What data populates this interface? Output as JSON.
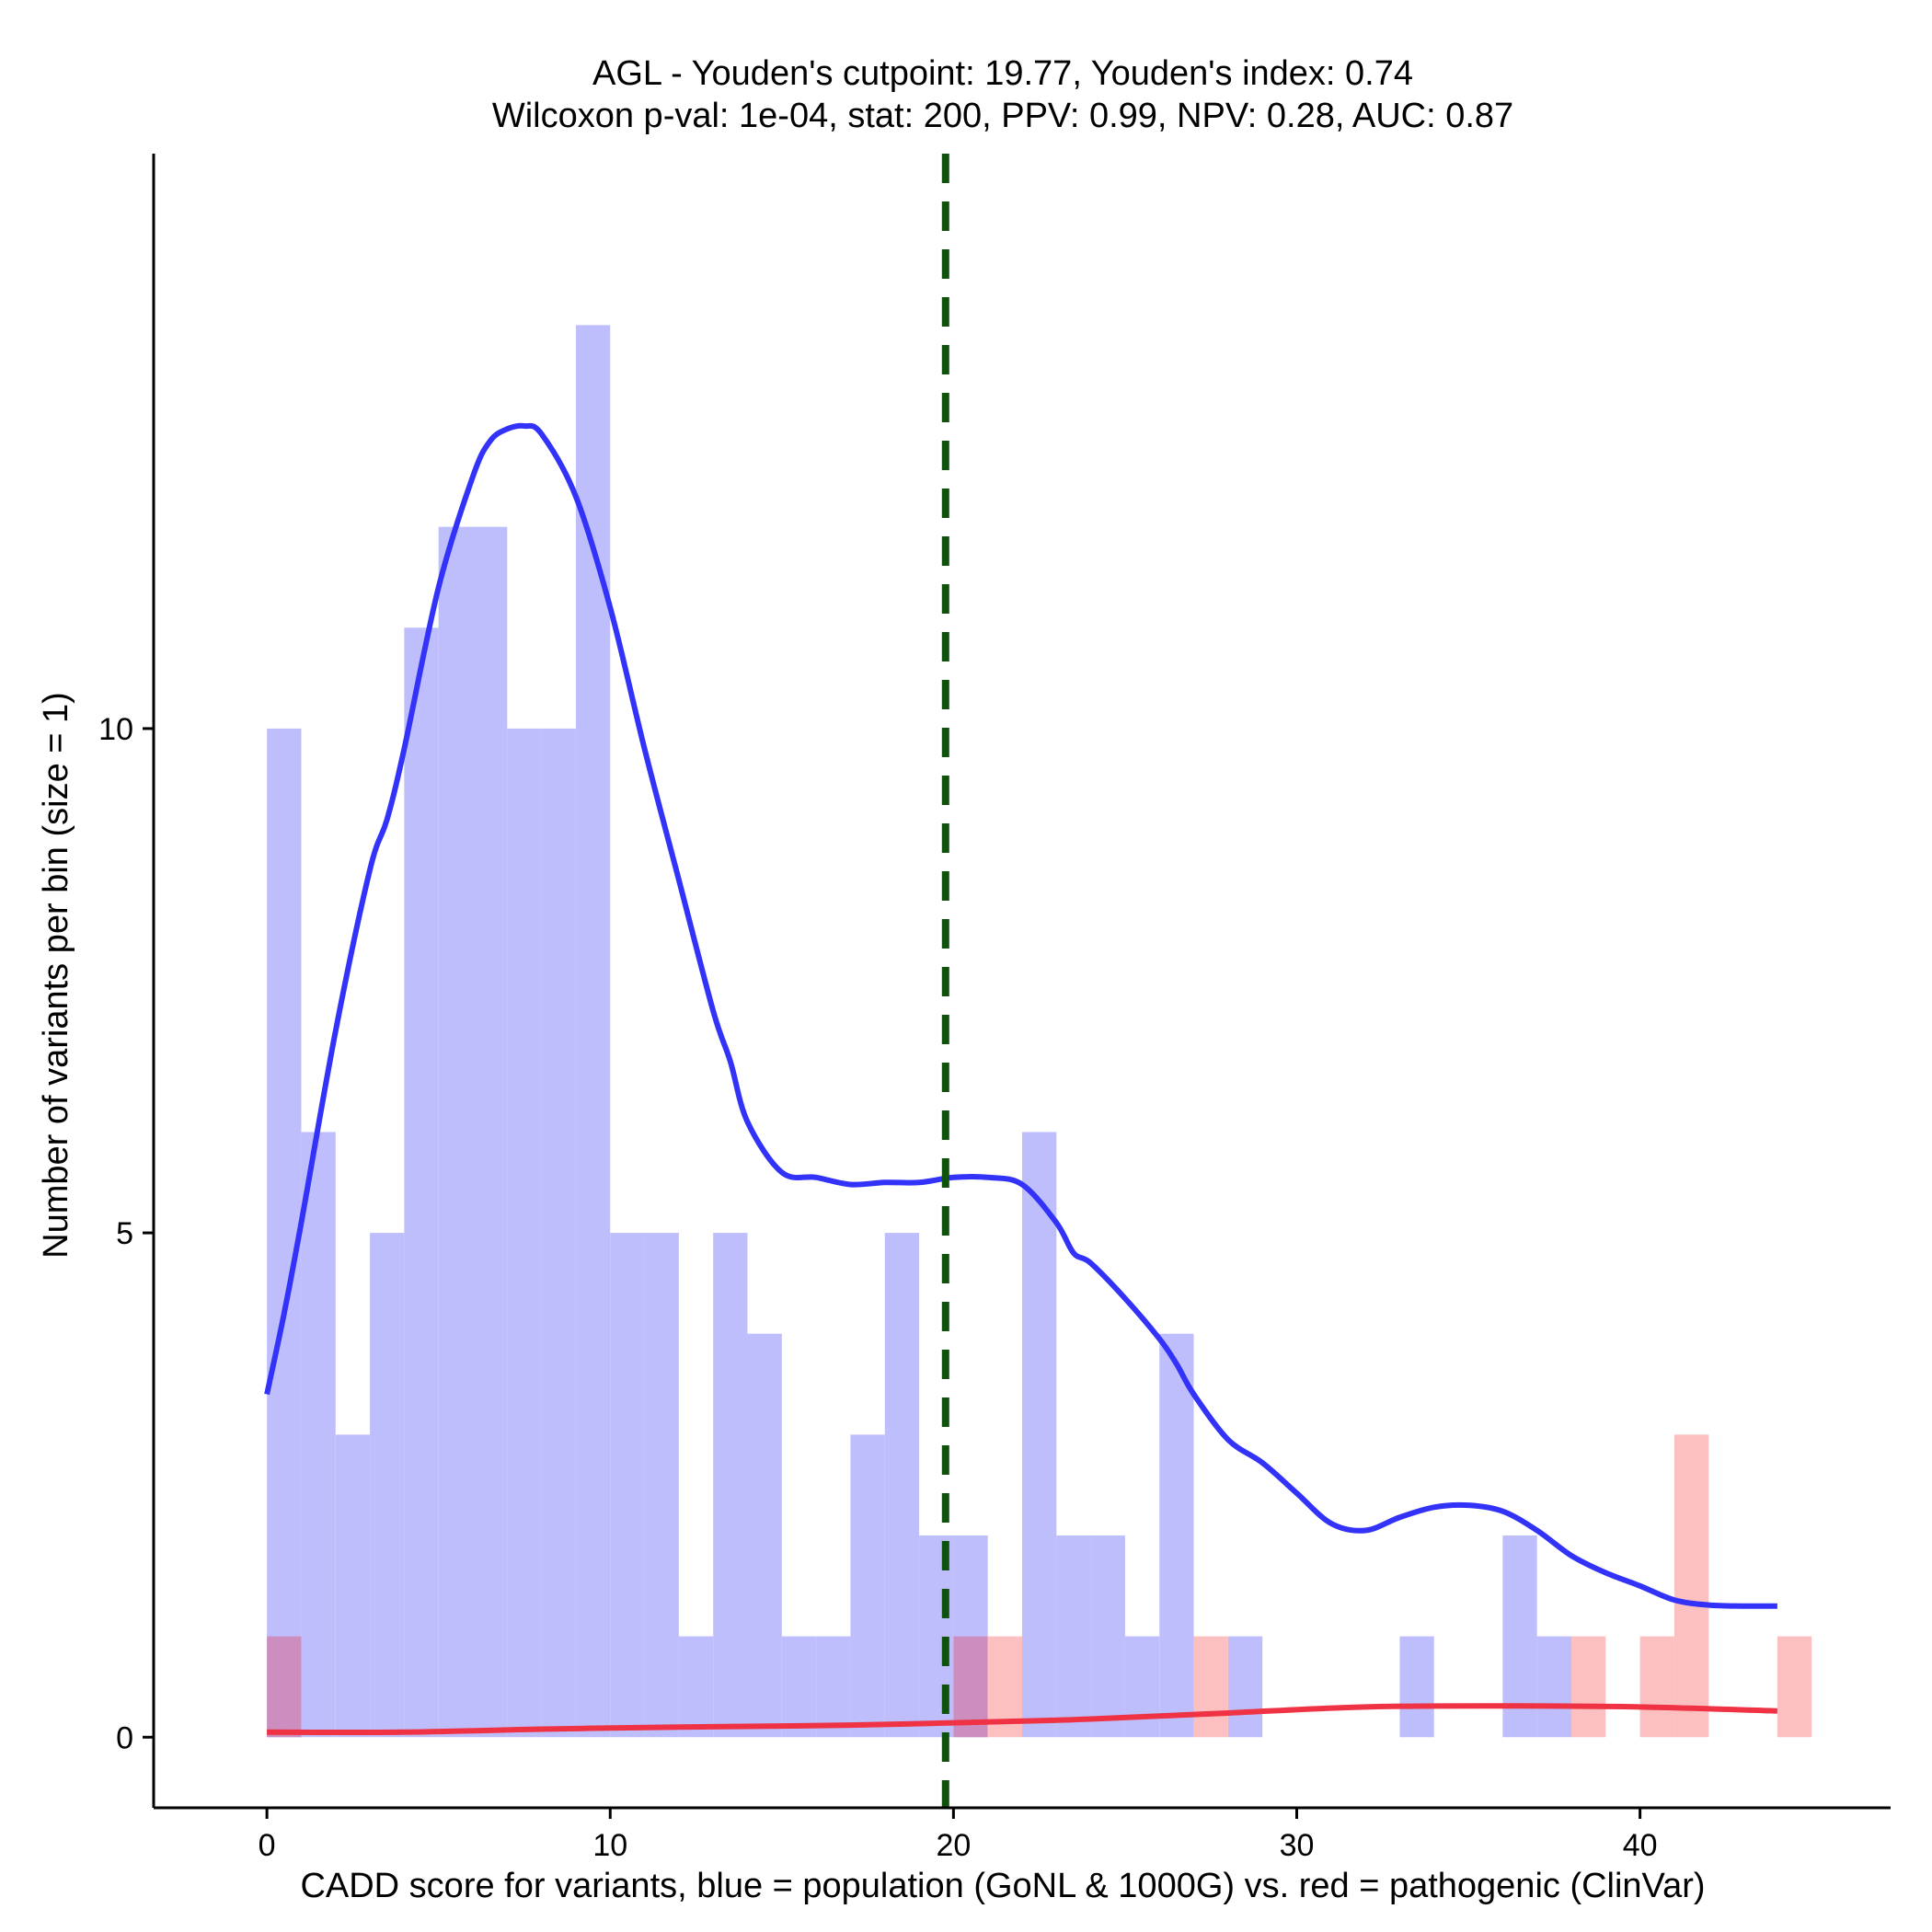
{
  "chart_data": {
    "type": "histogram",
    "title": "AGL - Youden's cutpoint: 19.77, Youden's index: 0.74",
    "subtitle": "Wilcoxon p-val: 1e-04, stat: 200, PPV: 0.99, NPV: 0.28, AUC: 0.87",
    "xlabel": "CADD score for variants, blue = population (GoNL & 1000G) vs. red = pathogenic (ClinVar)",
    "ylabel": "Number of variants per bin (size = 1)",
    "xlim": [
      -3.3,
      47.3
    ],
    "ylim": [
      -0.7,
      15.7
    ],
    "x_ticks": [
      0,
      10,
      20,
      30,
      40
    ],
    "y_ticks": [
      0,
      5,
      10
    ],
    "bin_width": 1,
    "cutpoint": 19.77,
    "colors": {
      "population_fill": "#bebefd",
      "pathogenic_fill": "#fcc0c1",
      "overlap_fill": "#cc8ebf",
      "population_line": "#3232f8",
      "pathogenic_line": "#ef3344",
      "cutpoint_line": "#0e520e"
    },
    "series": [
      {
        "name": "population (GoNL & 1000G)",
        "bin_starts": [
          0,
          1,
          2,
          3,
          4,
          5,
          6,
          7,
          8,
          9,
          10,
          11,
          12,
          13,
          14,
          15,
          16,
          17,
          18,
          19,
          20,
          21,
          22,
          23,
          24,
          25,
          26,
          27,
          28,
          29,
          30,
          31,
          32,
          33,
          34,
          35,
          36,
          37,
          38,
          39,
          40,
          41,
          42,
          43,
          44
        ],
        "counts": [
          10,
          6,
          3,
          5,
          11,
          12,
          12,
          10,
          10,
          14,
          5,
          5,
          1,
          5,
          4,
          1,
          1,
          3,
          5,
          2,
          2,
          0,
          6,
          2,
          2,
          1,
          4,
          0,
          1,
          0,
          0,
          0,
          0,
          1,
          0,
          0,
          2,
          1,
          0,
          0,
          0,
          0,
          0,
          0,
          0
        ]
      },
      {
        "name": "pathogenic (ClinVar)",
        "bin_starts": [
          0,
          1,
          2,
          3,
          4,
          5,
          6,
          7,
          8,
          9,
          10,
          11,
          12,
          13,
          14,
          15,
          16,
          17,
          18,
          19,
          20,
          21,
          22,
          23,
          24,
          25,
          26,
          27,
          28,
          29,
          30,
          31,
          32,
          33,
          34,
          35,
          36,
          37,
          38,
          39,
          40,
          41,
          42,
          43,
          44
        ],
        "counts": [
          1,
          0,
          0,
          0,
          0,
          0,
          0,
          0,
          0,
          0,
          0,
          0,
          0,
          0,
          0,
          0,
          0,
          0,
          0,
          0,
          1,
          1,
          0,
          0,
          0,
          0,
          0,
          1,
          0,
          0,
          0,
          0,
          0,
          0,
          0,
          0,
          0,
          0,
          1,
          0,
          1,
          3,
          0,
          0,
          1
        ]
      }
    ],
    "density_lines": [
      {
        "name": "population density",
        "x": [
          0,
          0.5,
          1,
          2,
          3,
          3.5,
          4,
          5,
          6,
          6.5,
          7,
          7.5,
          8,
          9,
          10,
          11,
          12,
          13,
          13.5,
          14,
          15,
          16,
          17,
          18,
          19,
          20,
          21,
          22,
          23,
          23.5,
          24,
          25,
          26,
          26.5,
          27,
          28,
          29,
          30,
          31,
          32,
          33,
          34,
          35,
          36,
          37,
          38,
          39,
          40,
          41,
          42,
          43,
          44
        ],
        "y": [
          3.4,
          4.2,
          5.1,
          7.0,
          8.6,
          9.1,
          9.8,
          11.4,
          12.5,
          12.85,
          12.97,
          13.0,
          12.92,
          12.3,
          11.2,
          9.8,
          8.5,
          7.2,
          6.7,
          6.1,
          5.6,
          5.55,
          5.48,
          5.5,
          5.5,
          5.55,
          5.55,
          5.48,
          5.1,
          4.8,
          4.7,
          4.35,
          3.95,
          3.7,
          3.4,
          2.95,
          2.72,
          2.42,
          2.12,
          2.05,
          2.18,
          2.28,
          2.3,
          2.24,
          2.05,
          1.8,
          1.63,
          1.5,
          1.36,
          1.31,
          1.3,
          1.3
        ]
      },
      {
        "name": "pathogenic density",
        "x": [
          0,
          4,
          8,
          12,
          17,
          22,
          24,
          28,
          32,
          36,
          40,
          44
        ],
        "y": [
          0.05,
          0.05,
          0.08,
          0.1,
          0.12,
          0.16,
          0.18,
          0.24,
          0.3,
          0.31,
          0.3,
          0.26
        ]
      }
    ]
  }
}
